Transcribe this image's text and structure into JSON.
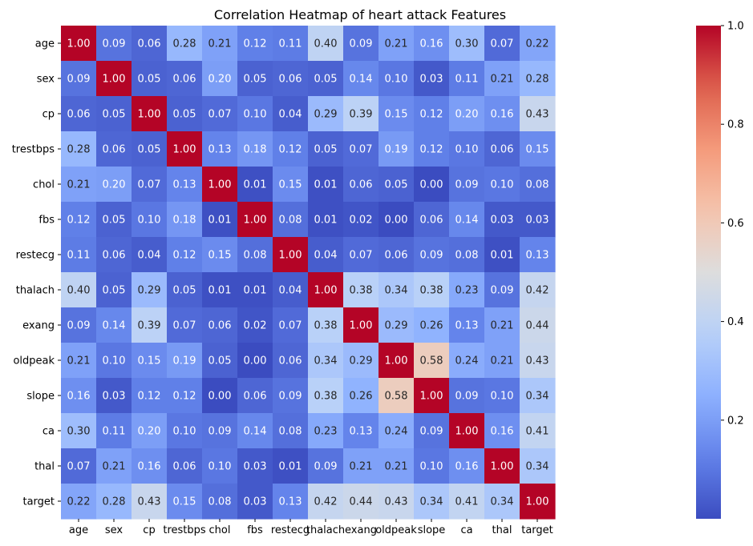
{
  "chart_data": {
    "type": "heatmap",
    "title": "Correlation Heatmap of heart attack Features",
    "xlabel": "",
    "ylabel": "",
    "labels": [
      "age",
      "sex",
      "cp",
      "trestbps",
      "chol",
      "fbs",
      "restecg",
      "thalach",
      "exang",
      "oldpeak",
      "slope",
      "ca",
      "thal",
      "target"
    ],
    "matrix": [
      [
        1.0,
        0.09,
        0.06,
        0.28,
        0.21,
        0.12,
        0.11,
        0.4,
        0.09,
        0.21,
        0.16,
        0.3,
        0.07,
        0.22
      ],
      [
        0.09,
        1.0,
        0.05,
        0.06,
        0.2,
        0.05,
        0.06,
        0.05,
        0.14,
        0.1,
        0.03,
        0.11,
        0.21,
        0.28
      ],
      [
        0.06,
        0.05,
        1.0,
        0.05,
        0.07,
        0.1,
        0.04,
        0.29,
        0.39,
        0.15,
        0.12,
        0.2,
        0.16,
        0.43
      ],
      [
        0.28,
        0.06,
        0.05,
        1.0,
        0.13,
        0.18,
        0.12,
        0.05,
        0.07,
        0.19,
        0.12,
        0.1,
        0.06,
        0.15
      ],
      [
        0.21,
        0.2,
        0.07,
        0.13,
        1.0,
        0.01,
        0.15,
        0.01,
        0.06,
        0.05,
        0.0,
        0.09,
        0.1,
        0.08
      ],
      [
        0.12,
        0.05,
        0.1,
        0.18,
        0.01,
        1.0,
        0.08,
        0.01,
        0.02,
        0.0,
        0.06,
        0.14,
        0.03,
        0.03
      ],
      [
        0.11,
        0.06,
        0.04,
        0.12,
        0.15,
        0.08,
        1.0,
        0.04,
        0.07,
        0.06,
        0.09,
        0.08,
        0.01,
        0.13
      ],
      [
        0.4,
        0.05,
        0.29,
        0.05,
        0.01,
        0.01,
        0.04,
        1.0,
        0.38,
        0.34,
        0.38,
        0.23,
        0.09,
        0.42
      ],
      [
        0.09,
        0.14,
        0.39,
        0.07,
        0.06,
        0.02,
        0.07,
        0.38,
        1.0,
        0.29,
        0.26,
        0.13,
        0.21,
        0.44
      ],
      [
        0.21,
        0.1,
        0.15,
        0.19,
        0.05,
        0.0,
        0.06,
        0.34,
        0.29,
        1.0,
        0.58,
        0.24,
        0.21,
        0.43
      ],
      [
        0.16,
        0.03,
        0.12,
        0.12,
        0.0,
        0.06,
        0.09,
        0.38,
        0.26,
        0.58,
        1.0,
        0.09,
        0.1,
        0.34
      ],
      [
        0.3,
        0.11,
        0.2,
        0.1,
        0.09,
        0.14,
        0.08,
        0.23,
        0.13,
        0.24,
        0.09,
        1.0,
        0.16,
        0.41
      ],
      [
        0.07,
        0.21,
        0.16,
        0.06,
        0.1,
        0.03,
        0.01,
        0.09,
        0.21,
        0.21,
        0.1,
        0.16,
        1.0,
        0.34
      ],
      [
        0.22,
        0.28,
        0.43,
        0.15,
        0.08,
        0.03,
        0.13,
        0.42,
        0.44,
        0.43,
        0.34,
        0.41,
        0.34,
        1.0
      ]
    ],
    "value_format": "0.00",
    "colormap": "coolwarm",
    "vmin": 0.0,
    "vmax": 1.0,
    "colorbar": {
      "ticks": [
        0.2,
        0.4,
        0.6,
        0.8,
        1.0
      ],
      "tick_labels": [
        "0.2",
        "0.4",
        "0.6",
        "0.8",
        "1.0"
      ]
    },
    "grid": false
  }
}
